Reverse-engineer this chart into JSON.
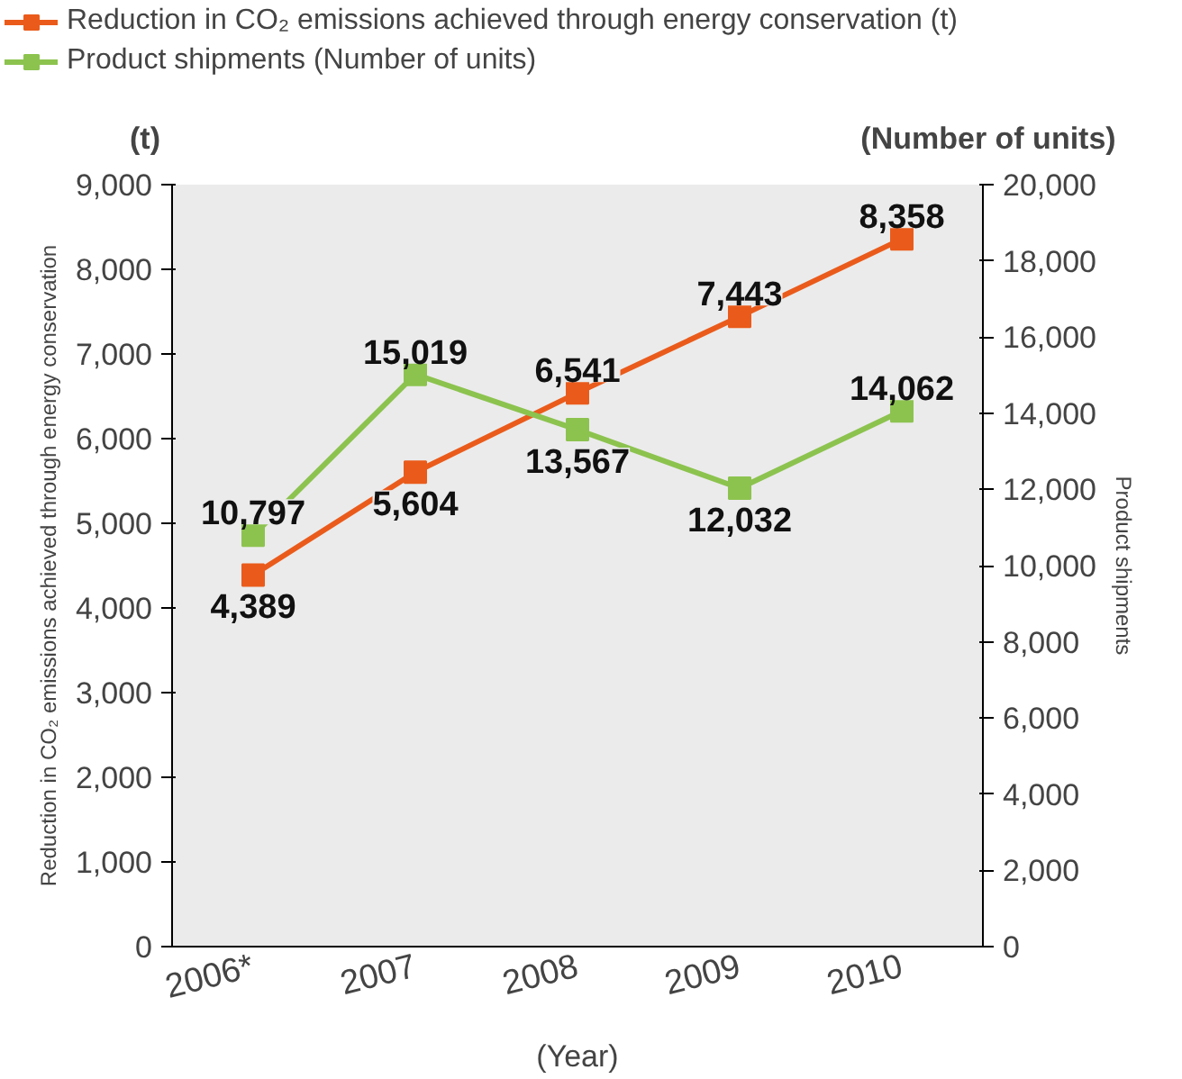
{
  "chart_data": {
    "type": "line",
    "categories": [
      "2006*",
      "2007",
      "2008",
      "2009",
      "2010"
    ],
    "xlabel": "(Year)",
    "ylabel": "Reduction in CO₂ emissions achieved through energy conservation",
    "y2label": "Product shipments",
    "annotations": [
      "(t)",
      "(Number of units)"
    ],
    "series": [
      {
        "name": "Reduction in CO₂ emissions achieved through energy conservation (t)",
        "color": "#ea5b1b",
        "values": [
          4389,
          5604,
          6541,
          7443,
          8358
        ],
        "value_labels": [
          "4,389",
          "5,604",
          "6,541",
          "7,443",
          "8,358"
        ]
      },
      {
        "name": "Product shipments (Number of units)",
        "color": "#8cc34f",
        "axis": "y2",
        "values": [
          10797,
          15019,
          13567,
          12032,
          14062
        ],
        "value_labels": [
          "10,797",
          "15,019",
          "13,567",
          "12,032",
          "14,062"
        ]
      }
    ],
    "ylim": [
      0,
      9000
    ],
    "yticks": [
      0,
      {
        "value": 1000,
        "label": "1,000"
      },
      {
        "value": 2000,
        "label": "2,000"
      },
      {
        "value": 3000,
        "label": "3,000"
      },
      {
        "value": 4000,
        "label": "4,000"
      },
      {
        "value": 5000,
        "label": "5,000"
      },
      {
        "value": 6000,
        "label": "6,000"
      },
      {
        "value": 7000,
        "label": "7,000"
      },
      {
        "value": 8000,
        "label": "8,000"
      },
      {
        "value": 9000,
        "label": "9,000"
      }
    ],
    "y2lim": [
      0,
      20000
    ],
    "y2ticks": [
      0,
      {
        "value": 2000,
        "label": "2,000"
      },
      {
        "value": 4000,
        "label": "4,000"
      },
      {
        "value": 6000,
        "label": "6,000"
      },
      {
        "value": 8000,
        "label": "8,000"
      },
      {
        "value": 10000,
        "label": "10,000"
      },
      {
        "value": 12000,
        "label": "12,000"
      },
      {
        "value": 14000,
        "label": "14,000"
      },
      {
        "value": 16000,
        "label": "16,000"
      },
      {
        "value": 18000,
        "label": "18,000"
      },
      {
        "value": 20000,
        "label": "20,000"
      }
    ],
    "grid": false,
    "legend": "top",
    "marker": "square",
    "line_style": "solid"
  }
}
